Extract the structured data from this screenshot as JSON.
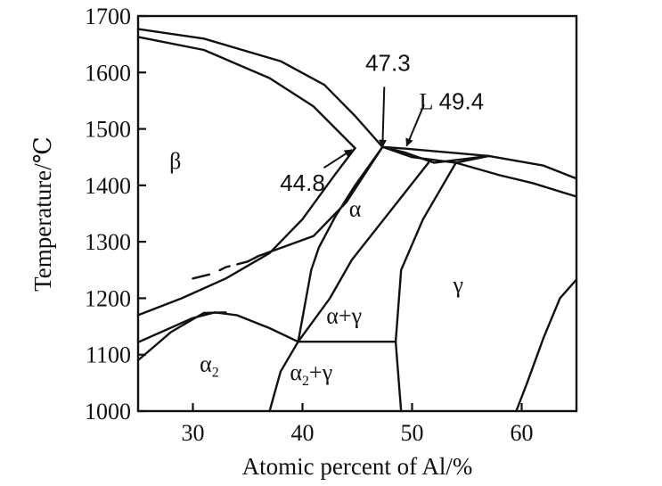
{
  "chart_data": {
    "type": "line",
    "xlabel": "Atomic percent of Al/%",
    "ylabel": "Temperature/℃",
    "xlim": [
      25,
      65
    ],
    "ylim": [
      1000,
      1700
    ],
    "x_ticks": [
      30,
      40,
      50,
      60
    ],
    "y_ticks": [
      1000,
      1100,
      1200,
      1300,
      1400,
      1500,
      1600,
      1700
    ],
    "grid": false,
    "boundaries": [
      {
        "points": [
          [
            25,
            1677
          ],
          [
            31,
            1660
          ],
          [
            38,
            1620
          ],
          [
            42,
            1578
          ],
          [
            44.8,
            1523
          ],
          [
            47.3,
            1468
          ]
        ]
      },
      {
        "points": [
          [
            25,
            1663
          ],
          [
            31,
            1640
          ],
          [
            37,
            1590
          ],
          [
            41,
            1540
          ],
          [
            44.8,
            1466
          ]
        ]
      },
      {
        "points": [
          [
            47.3,
            1468
          ],
          [
            49.4,
            1465
          ],
          [
            57,
            1452
          ]
        ]
      },
      {
        "points": [
          [
            57,
            1452
          ],
          [
            62,
            1435
          ],
          [
            65,
            1412
          ]
        ]
      },
      {
        "points": [
          [
            54,
            1440
          ],
          [
            58,
            1418
          ],
          [
            61,
            1404
          ],
          [
            65,
            1380
          ]
        ]
      },
      {
        "points": [
          [
            47.3,
            1468
          ],
          [
            49.4,
            1458
          ],
          [
            52,
            1440
          ],
          [
            57,
            1452
          ]
        ]
      },
      {
        "points": [
          [
            47.3,
            1468
          ],
          [
            50,
            1450
          ],
          [
            54,
            1440
          ],
          [
            57,
            1452
          ]
        ]
      },
      {
        "points": [
          [
            44.8,
            1466
          ],
          [
            43,
            1420
          ],
          [
            40,
            1340
          ],
          [
            37,
            1280
          ],
          [
            33,
            1235
          ],
          [
            29,
            1200
          ],
          [
            25,
            1170
          ]
        ]
      },
      {
        "points": [
          [
            47.3,
            1468
          ],
          [
            44,
            1370
          ],
          [
            41,
            1310
          ],
          [
            36,
            1275
          ],
          [
            35,
            1265
          ]
        ]
      },
      {
        "points": [
          [
            35,
            1265
          ],
          [
            33,
            1255
          ],
          [
            32,
            1245
          ]
        ]
      },
      {
        "points": [
          [
            31.5,
            1242
          ],
          [
            30,
            1235
          ]
        ]
      },
      {
        "points": [
          [
            47.3,
            1468
          ],
          [
            44.8,
            1400
          ],
          [
            43,
            1345
          ],
          [
            41.5,
            1290
          ],
          [
            40.8,
            1250
          ],
          [
            40,
            1165
          ],
          [
            39.6,
            1123
          ]
        ]
      },
      {
        "points": [
          [
            51.5,
            1440
          ],
          [
            44.5,
            1268
          ],
          [
            42.5,
            1200
          ],
          [
            39.6,
            1123
          ]
        ]
      },
      {
        "points": [
          [
            39.6,
            1123
          ],
          [
            48.5,
            1123
          ]
        ]
      },
      {
        "points": [
          [
            25,
            1122
          ],
          [
            30,
            1165
          ],
          [
            32,
            1175
          ],
          [
            34,
            1170
          ],
          [
            37,
            1147
          ],
          [
            39.6,
            1123
          ]
        ]
      },
      {
        "points": [
          [
            25,
            1090
          ],
          [
            28,
            1140
          ],
          [
            31,
            1174
          ],
          [
            33,
            1175
          ]
        ]
      },
      {
        "points": [
          [
            39.6,
            1123
          ],
          [
            38,
            1070
          ],
          [
            37,
            1000
          ]
        ]
      },
      {
        "points": [
          [
            54,
            1440
          ],
          [
            51,
            1340
          ],
          [
            49,
            1250
          ],
          [
            48.5,
            1123
          ],
          [
            48.8,
            1050
          ],
          [
            49,
            1000
          ]
        ]
      },
      {
        "points": [
          [
            59.5,
            1000
          ],
          [
            60.5,
            1050
          ],
          [
            62,
            1130
          ],
          [
            63.5,
            1200
          ],
          [
            65,
            1233
          ]
        ]
      }
    ],
    "regions": [
      {
        "label": "β",
        "x": 28.4,
        "y": 1430
      },
      {
        "label": "α",
        "x": 44.8,
        "y": 1345
      },
      {
        "label": "α+γ",
        "x": 43.8,
        "y": 1156
      },
      {
        "label": "γ",
        "x": 54.2,
        "y": 1210
      },
      {
        "label": "α",
        "subscript": "2",
        "x": 31.5,
        "y": 1070
      },
      {
        "label": "α",
        "subscript": "2",
        "suffix": "+γ",
        "x": 40.8,
        "y": 1055
      },
      {
        "label": "L",
        "x": 51.3,
        "y": 1535
      }
    ],
    "annotations": [
      {
        "label": "47.3",
        "text_x": 47.8,
        "text_y": 1603,
        "point_x": 47.3,
        "point_y": 1468
      },
      {
        "label": "49.4",
        "text_x": 54.5,
        "text_y": 1535,
        "point_x": 49.5,
        "point_y": 1470
      },
      {
        "label": "44.8",
        "text_x": 40,
        "text_y": 1390,
        "point_x": 44.5,
        "point_y": 1463
      }
    ]
  }
}
